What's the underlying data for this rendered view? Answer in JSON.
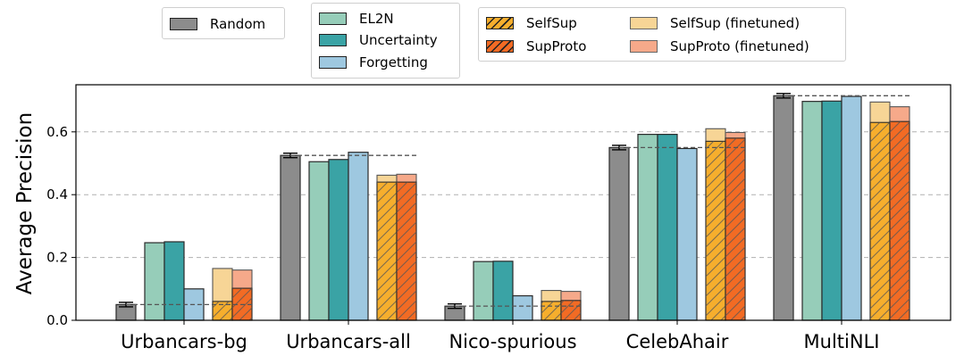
{
  "chart_data": {
    "type": "bar",
    "title": "",
    "xlabel": "",
    "ylabel": "Average Precision",
    "ylim": [
      0,
      0.75
    ],
    "yticks": [
      "0.0",
      "0.2",
      "0.4",
      "0.6"
    ],
    "grid": "horizontal dashed",
    "categories": [
      "Urbancars-bg",
      "Urbancars-all",
      "Nico-spurious",
      "CelebAhair",
      "MultiNLI"
    ],
    "baseline_dashed_per_category": [
      0.05,
      0.525,
      0.045,
      0.55,
      0.715
    ],
    "series": [
      {
        "name": "Random",
        "color": "#8c8c8c",
        "values": [
          0.05,
          0.525,
          0.045,
          0.55,
          0.715
        ],
        "error_bars": true
      },
      {
        "name": "EL2N",
        "color": "#96cdb9",
        "values": [
          0.247,
          0.505,
          0.187,
          0.592,
          0.697
        ]
      },
      {
        "name": "Uncertainty",
        "color": "#3aa3a5",
        "values": [
          0.25,
          0.512,
          0.188,
          0.592,
          0.698
        ]
      },
      {
        "name": "Forgetting",
        "color": "#9ec8e0",
        "values": [
          0.1,
          0.535,
          0.078,
          0.547,
          0.713
        ]
      },
      {
        "name": "SelfSup",
        "color": "#f6ae2d",
        "hatch": true,
        "values": [
          0.06,
          0.44,
          0.06,
          0.57,
          0.63
        ]
      },
      {
        "name": "SelfSup (finetuned)",
        "color": "#f7d596",
        "values": [
          0.165,
          0.462,
          0.095,
          0.61,
          0.695
        ]
      },
      {
        "name": "SupProto",
        "color": "#f26b24",
        "hatch": true,
        "values": [
          0.102,
          0.44,
          0.063,
          0.58,
          0.633
        ]
      },
      {
        "name": "SupProto (finetuned)",
        "color": "#f6a98a",
        "values": [
          0.16,
          0.465,
          0.092,
          0.598,
          0.68
        ]
      }
    ]
  },
  "legend": {
    "group1": [
      {
        "label": "Random",
        "color": "#8c8c8c"
      }
    ],
    "group2": [
      {
        "label": "EL2N",
        "color": "#96cdb9"
      },
      {
        "label": "Uncertainty",
        "color": "#3aa3a5"
      },
      {
        "label": "Forgetting",
        "color": "#9ec8e0"
      }
    ],
    "group3": [
      {
        "label": "SelfSup",
        "color": "#f6ae2d",
        "hatch": true
      },
      {
        "label": "SupProto",
        "color": "#f26b24",
        "hatch": true
      }
    ],
    "group4": [
      {
        "label": "SelfSup (finetuned)",
        "color": "#f7d596"
      },
      {
        "label": "SupProto (finetuned)",
        "color": "#f6a98a"
      }
    ]
  }
}
